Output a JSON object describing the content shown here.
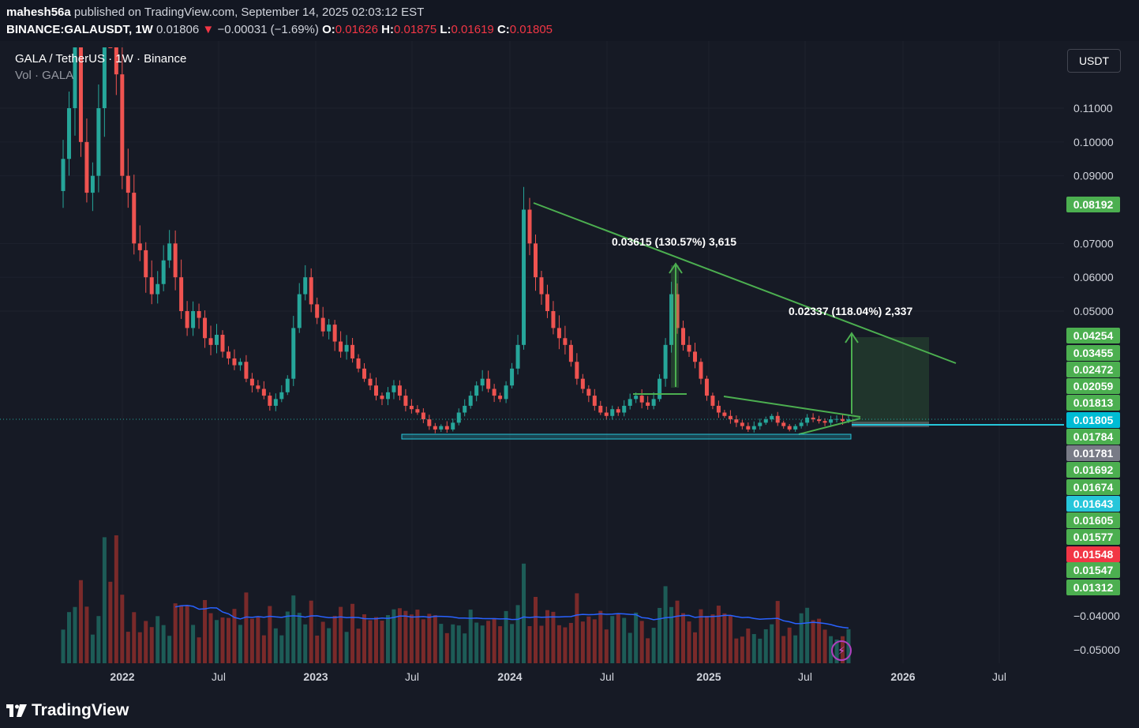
{
  "header": {
    "author": "mahesh56a",
    "published_text": "published on TradingView.com, September 14, 2025 02:03:12 EST",
    "symbol": "BINANCE:GALAUSDT, 1W",
    "last": "0.01806",
    "change_arrow": "▼",
    "change": "−0.00031 (−1.69%)",
    "o_label": "O:",
    "o": "0.01626",
    "h_label": "H:",
    "h": "0.01875",
    "l_label": "L:",
    "l": "0.01619",
    "c_label": "C:",
    "c": "0.01805"
  },
  "legend": {
    "title": "GALA / TetherUS · 1W · Binance",
    "volume": "Vol · GALA"
  },
  "currency_button": "USDT",
  "footer": {
    "brand": "TradingView"
  },
  "icons": {
    "logo": "tradingview-logo-icon",
    "bolt": "lightning-icon"
  },
  "colors": {
    "up": "#26a69a",
    "down": "#ef5350",
    "trendline": "#4caf50",
    "volume_ma": "#2962ff",
    "support": "#26c6da",
    "bg": "#161a25"
  },
  "chart_data": {
    "type": "candlestick",
    "timeframe": "1W",
    "yticks": [
      "0.11000",
      "0.10000",
      "0.09000",
      "0.07000",
      "0.06000",
      "0.05000"
    ],
    "volume_ticks": [
      "−0.04000",
      "−0.05000"
    ],
    "x_ticks": [
      "2022",
      "Jul",
      "2023",
      "Jul",
      "2024",
      "Jul",
      "2025",
      "Jul",
      "2026",
      "Jul"
    ],
    "price_labels": [
      {
        "text": "0.08192",
        "color": "#4caf50"
      },
      {
        "text": "0.04254",
        "color": "#4caf50"
      },
      {
        "text": "0.03455",
        "color": "#4caf50"
      },
      {
        "text": "0.02472",
        "color": "#4caf50"
      },
      {
        "text": "0.02059",
        "color": "#4caf50"
      },
      {
        "text": "0.01813",
        "color": "#4caf50"
      },
      {
        "text": "0.01805",
        "color": "#00bcd4"
      },
      {
        "text": "0.01784",
        "color": "#4caf50"
      },
      {
        "text": "0.01781",
        "color": "#787b86"
      },
      {
        "text": "0.01692",
        "color": "#4caf50"
      },
      {
        "text": "0.01674",
        "color": "#4caf50"
      },
      {
        "text": "0.01643",
        "color": "#26c6da"
      },
      {
        "text": "0.01605",
        "color": "#4caf50"
      },
      {
        "text": "0.01577",
        "color": "#4caf50"
      },
      {
        "text": "0.01548",
        "color": "#f23645"
      },
      {
        "text": "0.01547",
        "color": "#4caf50"
      },
      {
        "text": "0.01312",
        "color": "#4caf50"
      }
    ],
    "annotations": [
      {
        "text": "0.03615 (130.57%) 3,615"
      },
      {
        "text": "0.02337 (118.04%) 2,337"
      }
    ],
    "closes": [
      0.095,
      0.11,
      0.13,
      0.1,
      0.085,
      0.09,
      0.11,
      0.25,
      0.2,
      0.12,
      0.09,
      0.085,
      0.07,
      0.068,
      0.06,
      0.055,
      0.058,
      0.065,
      0.07,
      0.06,
      0.05,
      0.045,
      0.05,
      0.048,
      0.042,
      0.04,
      0.043,
      0.038,
      0.036,
      0.034,
      0.035,
      0.03,
      0.028,
      0.027,
      0.025,
      0.022,
      0.024,
      0.026,
      0.03,
      0.045,
      0.055,
      0.06,
      0.052,
      0.048,
      0.044,
      0.046,
      0.041,
      0.038,
      0.04,
      0.036,
      0.033,
      0.03,
      0.028,
      0.025,
      0.024,
      0.026,
      0.028,
      0.025,
      0.022,
      0.021,
      0.02,
      0.018,
      0.016,
      0.015,
      0.016,
      0.015,
      0.017,
      0.02,
      0.022,
      0.025,
      0.028,
      0.03,
      0.027,
      0.025,
      0.024,
      0.028,
      0.033,
      0.04,
      0.08,
      0.07,
      0.06,
      0.055,
      0.05,
      0.045,
      0.042,
      0.04,
      0.035,
      0.03,
      0.027,
      0.025,
      0.022,
      0.02,
      0.019,
      0.021,
      0.02,
      0.022,
      0.024,
      0.025,
      0.023,
      0.022,
      0.024,
      0.03,
      0.04,
      0.055,
      0.045,
      0.04,
      0.038,
      0.035,
      0.03,
      0.025,
      0.022,
      0.02,
      0.019,
      0.018,
      0.017,
      0.016,
      0.015,
      0.016,
      0.017,
      0.018,
      0.019,
      0.017,
      0.016,
      0.015,
      0.016,
      0.017,
      0.0185,
      0.018,
      0.0175,
      0.017,
      0.018,
      0.0181,
      0.0175,
      0.018
    ]
  }
}
